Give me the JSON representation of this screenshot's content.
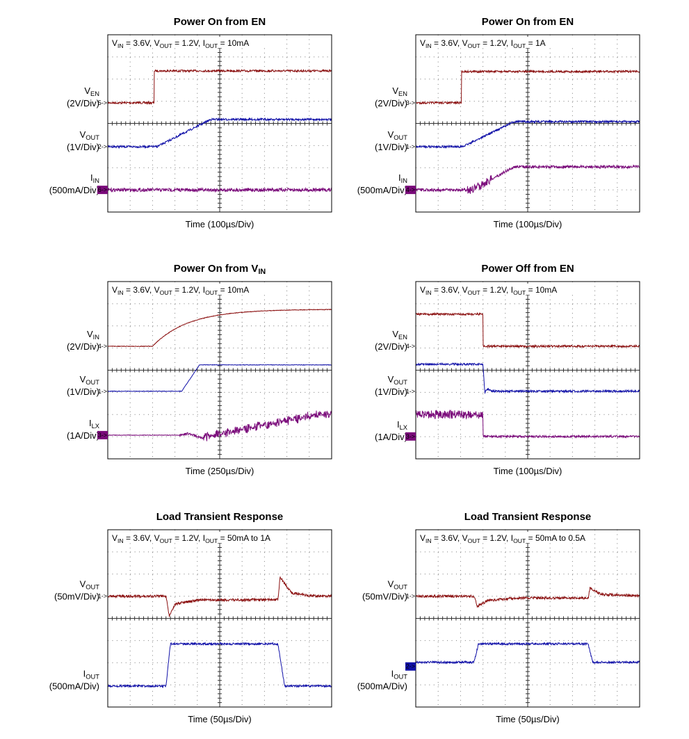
{
  "panels": [
    {
      "title": [
        "Power On from EN"
      ],
      "conditions": [
        "V",
        "IN",
        " = 3.6V, V",
        "OUT",
        " = 1.2V, I",
        "OUT",
        " = 10mA"
      ],
      "channels": [
        {
          "name": [
            "V",
            "EN"
          ],
          "scale": "(2V/Div)",
          "marker": "5->"
        },
        {
          "name": [
            "V",
            "OUT"
          ],
          "scale": "(1V/Div)",
          "marker": "2->"
        },
        {
          "name": [
            "I",
            "IN"
          ],
          "scale": "(500mA/Div)",
          "marker": "6->"
        }
      ],
      "x_label": "Time (100µs/Div)"
    },
    {
      "title": [
        "Power On from EN"
      ],
      "conditions": [
        "V",
        "IN",
        " = 3.6V, V",
        "OUT",
        " = 1.2V, I",
        "OUT",
        " = 1A"
      ],
      "channels": [
        {
          "name": [
            "V",
            "EN"
          ],
          "scale": "(2V/Div)",
          "marker": "3->"
        },
        {
          "name": [
            "V",
            "OUT"
          ],
          "scale": "(1V/Div)",
          "marker": "1->"
        },
        {
          "name": [
            "I",
            "IN"
          ],
          "scale": "(500mA/Div)",
          "marker": "4->"
        }
      ],
      "x_label": "Time (100µs/Div)"
    },
    {
      "title": [
        "Power On from V",
        "IN"
      ],
      "conditions": [
        "V",
        "IN",
        " = 3.6V, V",
        "OUT",
        " = 1.2V, I",
        "OUT",
        " = 10mA"
      ],
      "channels": [
        {
          "name": [
            "V",
            "IN"
          ],
          "scale": "(2V/Div)",
          "marker": "4->"
        },
        {
          "name": [
            "V",
            "OUT"
          ],
          "scale": "(1V/Div)",
          "marker": "1->"
        },
        {
          "name": [
            "I",
            "LX"
          ],
          "scale": "(1A/Div)",
          "marker": "3->"
        }
      ],
      "x_label": "Time (250µs/Div)"
    },
    {
      "title": [
        "Power Off from EN"
      ],
      "conditions": [
        "V",
        "IN",
        " = 3.6V, V",
        "OUT",
        " = 1.2V, I",
        "OUT",
        " = 10mA"
      ],
      "channels": [
        {
          "name": [
            "V",
            "EN"
          ],
          "scale": "(2V/Div)",
          "marker": "4->"
        },
        {
          "name": [
            "V",
            "OUT"
          ],
          "scale": "(1V/Div)",
          "marker": "1->"
        },
        {
          "name": [
            "I",
            "LX"
          ],
          "scale": "(1A/Div)",
          "marker": "3->"
        }
      ],
      "x_label": "Time (100µs/Div)"
    },
    {
      "title": [
        "Load Transient Response"
      ],
      "conditions": [
        "V",
        "IN",
        " = 3.6V, V",
        "OUT",
        " = 1.2V, I",
        "OUT",
        " = 50mA to 1A"
      ],
      "channels": [
        {
          "name": [
            "V",
            "OUT"
          ],
          "scale": "(50mV/Div)",
          "marker": "1->"
        },
        {
          "name": [
            "I",
            "OUT"
          ],
          "scale": "(500mA/Div)"
        }
      ],
      "x_label": "Time (50µs/Div)"
    },
    {
      "title": [
        "Load Transient Response"
      ],
      "conditions": [
        "V",
        "IN",
        " = 3.6V, V",
        "OUT",
        " = 1.2V, I",
        "OUT",
        " = 50mA to 0.5A"
      ],
      "channels": [
        {
          "name": [
            "V",
            "OUT"
          ],
          "scale": "(50mV/Div)",
          "marker": "1->"
        },
        {
          "name": [
            "I",
            "OUT"
          ],
          "scale": "(500mA/Div)",
          "marker": "2->"
        }
      ],
      "x_label": "Time (50µs/Div)"
    }
  ]
}
